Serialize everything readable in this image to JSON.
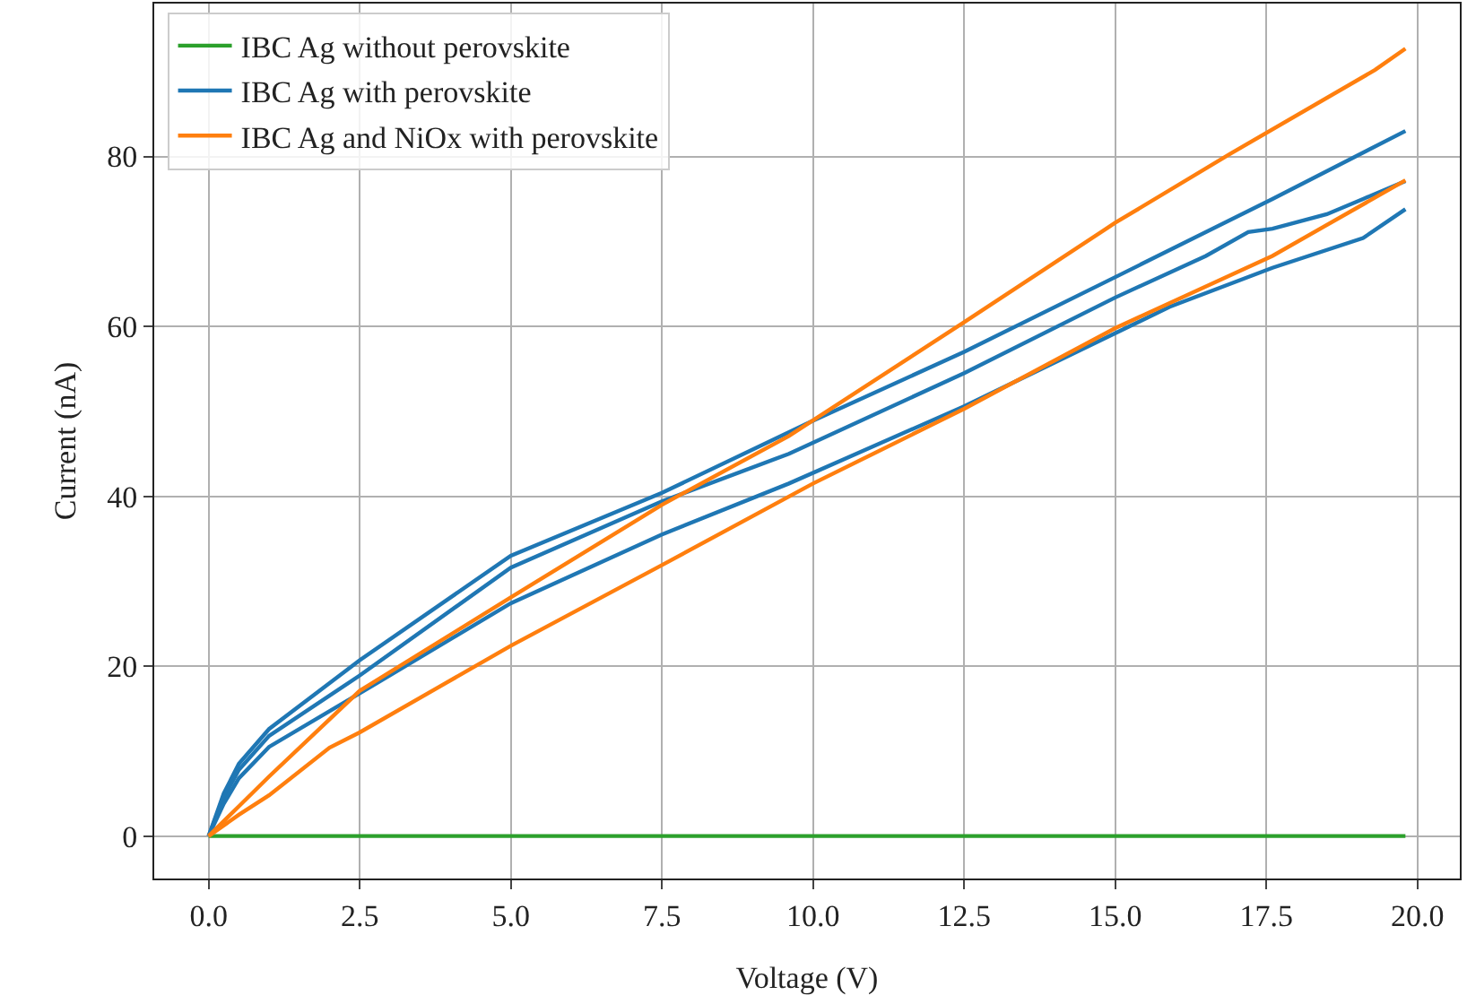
{
  "chart_data": {
    "type": "line",
    "xlabel": "Voltage (V)",
    "ylabel": "Current (nA)",
    "xlim": [
      -0.9,
      20.7
    ],
    "ylim": [
      -5,
      98
    ],
    "xticks": [
      {
        "value": 0,
        "label": "0.0"
      },
      {
        "value": 2.5,
        "label": "2.5"
      },
      {
        "value": 5,
        "label": "5.0"
      },
      {
        "value": 7.5,
        "label": "7.5"
      },
      {
        "value": 10,
        "label": "10.0"
      },
      {
        "value": 12.5,
        "label": "12.5"
      },
      {
        "value": 15,
        "label": "15.0"
      },
      {
        "value": 17.5,
        "label": "17.5"
      },
      {
        "value": 20,
        "label": "20.0"
      }
    ],
    "yticks": [
      0,
      20,
      40,
      60,
      80
    ],
    "grid": true,
    "legend": "top left",
    "marker": "none",
    "line_style": "solid",
    "series": [
      {
        "name": "IBC Ag without perovskite",
        "color": "#2ca02c",
        "x": [
          0,
          5,
          10,
          15,
          19.8
        ],
        "values": [
          0,
          0,
          0,
          0,
          0
        ]
      },
      {
        "name": "IBC Ag with perovskite",
        "color": "#1f77b4",
        "x": [
          0,
          0.25,
          0.5,
          1,
          2.5,
          5,
          7.5,
          10,
          12.5,
          15,
          17.6,
          19.8
        ],
        "values": [
          0,
          5,
          8.5,
          12.6,
          20.7,
          33,
          40.4,
          48.9,
          57,
          65.8,
          75,
          83
        ]
      },
      {
        "color": "#1f77b4",
        "x": [
          0,
          0.25,
          0.5,
          1,
          2.5,
          5,
          7.5,
          9.6,
          12.5,
          15,
          16.5,
          17.2,
          17.6,
          18.5,
          19.1,
          19.8
        ],
        "values": [
          0,
          4.5,
          7.8,
          11.8,
          18.9,
          31.6,
          39.4,
          45,
          54.5,
          63.4,
          68.3,
          71.1,
          71.5,
          73.2,
          75,
          77.1
        ]
      },
      {
        "color": "#1f77b4",
        "x": [
          0,
          0.25,
          0.5,
          1,
          2.5,
          5,
          7.5,
          9.6,
          12.5,
          15.9,
          17.6,
          19.1,
          19.8
        ],
        "values": [
          0,
          3.8,
          6.8,
          10.5,
          16.8,
          27.4,
          35.5,
          41.5,
          50.6,
          62.3,
          66.9,
          70.4,
          73.8
        ]
      },
      {
        "name": "IBC Ag and NiOx with perovskite",
        "color": "#ff7f0e",
        "x": [
          0,
          0.5,
          1,
          2.5,
          5,
          7.5,
          9.6,
          12.5,
          15,
          16.9,
          19.3,
          19.8
        ],
        "values": [
          0,
          3.5,
          7,
          17.1,
          28.1,
          39,
          47.1,
          60.5,
          72.2,
          80.3,
          90.2,
          92.7
        ]
      },
      {
        "color": "#ff7f0e",
        "x": [
          0,
          0.5,
          1,
          2,
          2.5,
          5,
          7.5,
          10,
          12.5,
          15,
          17.6,
          19.8
        ],
        "values": [
          0,
          2.5,
          4.8,
          10.4,
          12.2,
          22.4,
          31.9,
          41.5,
          50.3,
          59.8,
          68.3,
          77.2
        ]
      }
    ]
  }
}
